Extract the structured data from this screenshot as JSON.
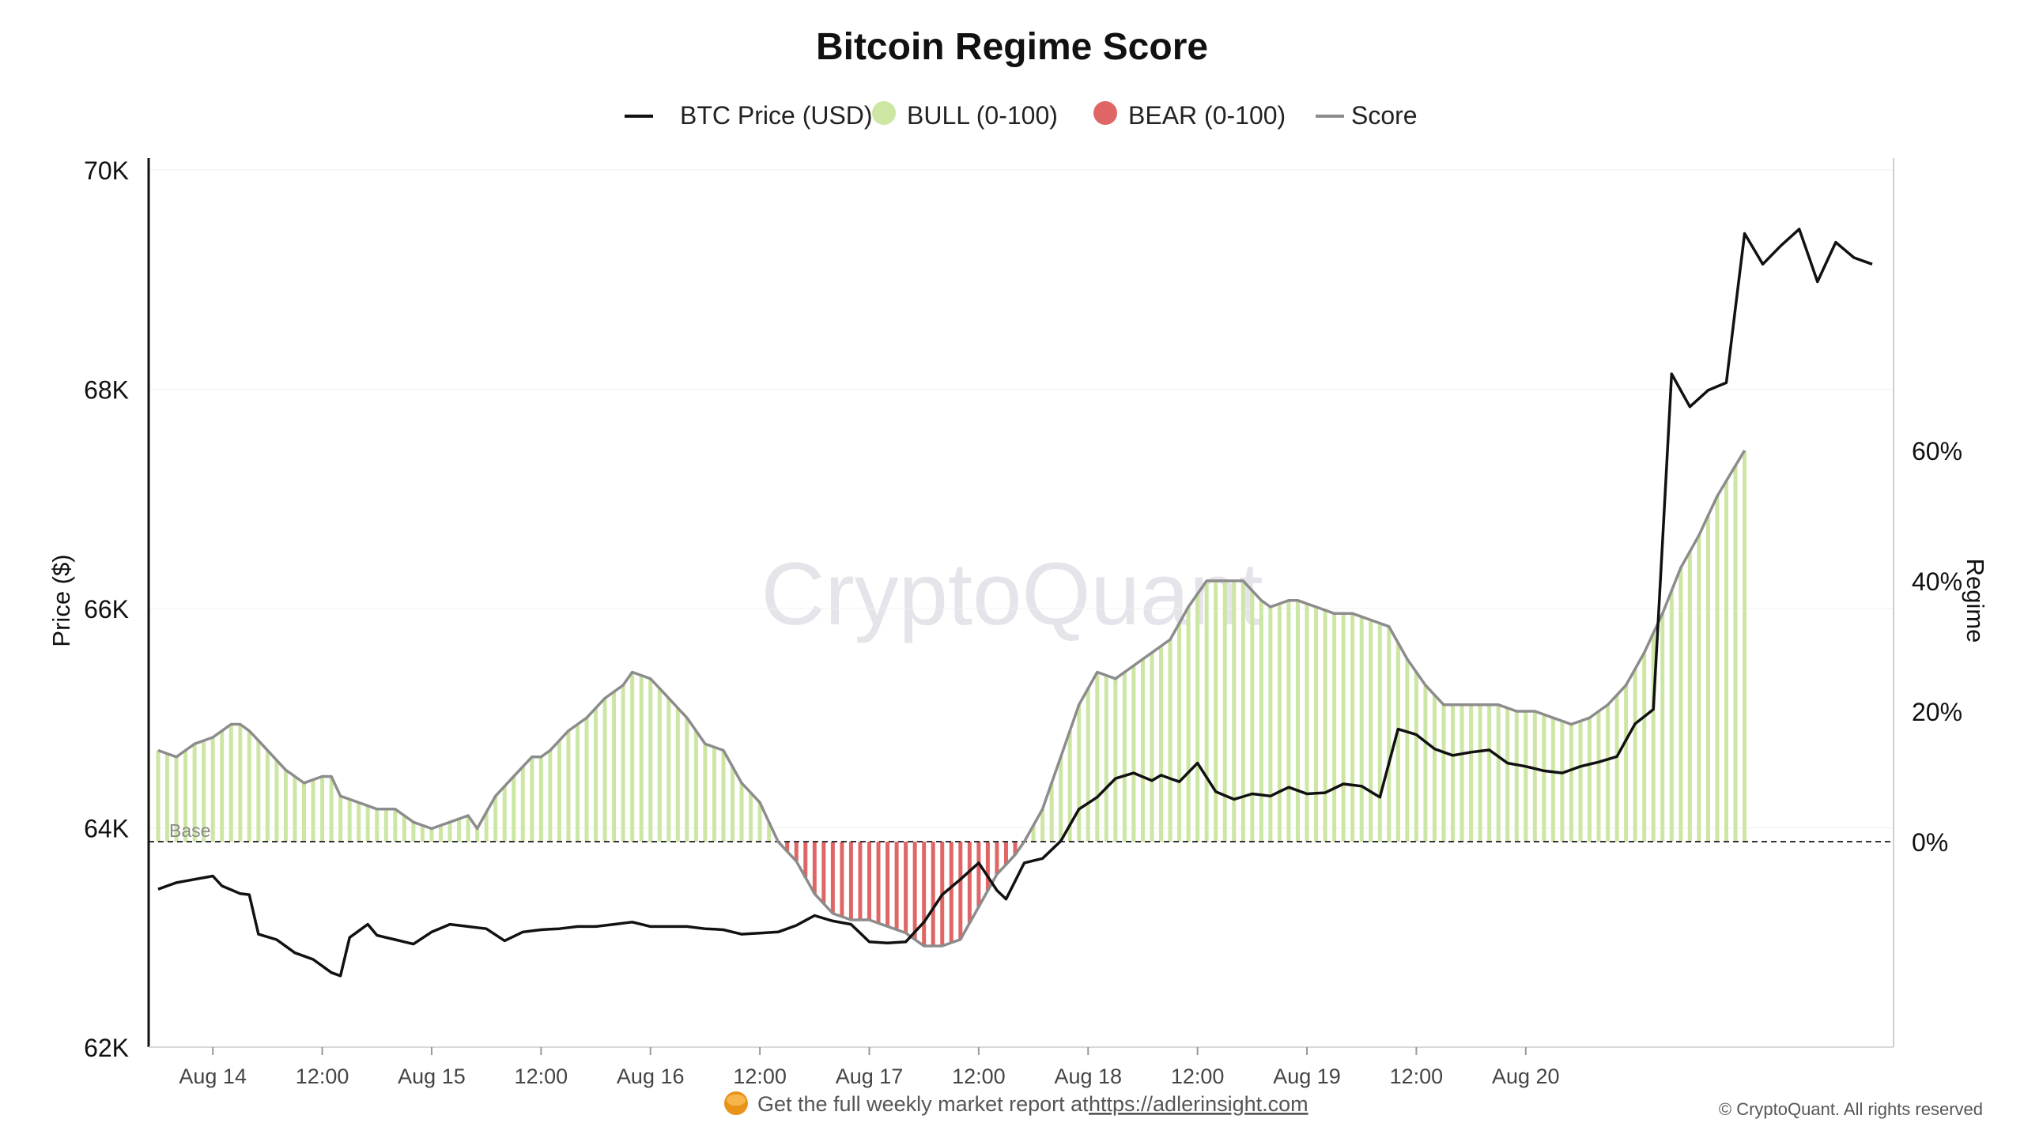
{
  "chart_data": {
    "type": "bar",
    "title": "Bitcoin Regime Score",
    "legend": [
      {
        "label": "BTC Price (USD)",
        "color": "#111111",
        "marker": "line"
      },
      {
        "label": "BULL (0-100)",
        "color": "#cde6a3",
        "marker": "dot"
      },
      {
        "label": "BEAR (0-100)",
        "color": "#e06666",
        "marker": "dot"
      },
      {
        "label": "Score",
        "color": "#8c8c8c",
        "marker": "line"
      }
    ],
    "legend_position": "top-center",
    "ylabel_left": "Price ($)",
    "ylabel_right": "Regime",
    "y_left_ticks": [
      "70K",
      "68K",
      "66K",
      "64K",
      "62K"
    ],
    "y_left_range": [
      62000,
      70000
    ],
    "y_right_ticks": [
      "60%",
      "40%",
      "20%",
      "0%"
    ],
    "y_right_range": [
      -19,
      60
    ],
    "x_ticks": [
      "Aug 14",
      "12:00",
      "Aug 15",
      "12:00",
      "Aug 16",
      "12:00",
      "Aug 17",
      "12:00",
      "Aug 18",
      "12:00",
      "Aug 19",
      "12:00",
      "Aug 20"
    ],
    "baseline_label": "Base",
    "watermark": "CryptoQuant",
    "grid": true,
    "score_anchor_points": [
      [
        0,
        14
      ],
      [
        2,
        13
      ],
      [
        4,
        15
      ],
      [
        6,
        16
      ],
      [
        8,
        18
      ],
      [
        9,
        18
      ],
      [
        10,
        17
      ],
      [
        12,
        14
      ],
      [
        14,
        11
      ],
      [
        16,
        9
      ],
      [
        18,
        10
      ],
      [
        19,
        10
      ],
      [
        20,
        7
      ],
      [
        22,
        6
      ],
      [
        24,
        5
      ],
      [
        26,
        5
      ],
      [
        28,
        3
      ],
      [
        30,
        2
      ],
      [
        32,
        3
      ],
      [
        34,
        4
      ],
      [
        35,
        2
      ],
      [
        37,
        7
      ],
      [
        39,
        10
      ],
      [
        41,
        13
      ],
      [
        42,
        13
      ],
      [
        43,
        14
      ],
      [
        45,
        17
      ],
      [
        47,
        19
      ],
      [
        49,
        22
      ],
      [
        51,
        24
      ],
      [
        52,
        26
      ],
      [
        54,
        25
      ],
      [
        56,
        22
      ],
      [
        58,
        19
      ],
      [
        60,
        15
      ],
      [
        62,
        14
      ],
      [
        64,
        9
      ],
      [
        66,
        6
      ],
      [
        68,
        0
      ],
      [
        70,
        -3
      ],
      [
        72,
        -8
      ],
      [
        74,
        -11
      ],
      [
        76,
        -12
      ],
      [
        78,
        -12
      ],
      [
        80,
        -13
      ],
      [
        82,
        -14
      ],
      [
        84,
        -16
      ],
      [
        86,
        -16
      ],
      [
        88,
        -15
      ],
      [
        90,
        -10
      ],
      [
        92,
        -5
      ],
      [
        94,
        -2
      ],
      [
        95,
        0
      ],
      [
        97,
        5
      ],
      [
        99,
        13
      ],
      [
        101,
        21
      ],
      [
        103,
        26
      ],
      [
        105,
        25
      ],
      [
        107,
        27
      ],
      [
        109,
        29
      ],
      [
        111,
        31
      ],
      [
        113,
        36
      ],
      [
        115,
        40
      ],
      [
        117,
        40
      ],
      [
        119,
        40
      ],
      [
        121,
        37
      ],
      [
        122,
        36
      ],
      [
        124,
        37
      ],
      [
        125,
        37
      ],
      [
        127,
        36
      ],
      [
        129,
        35
      ],
      [
        131,
        35
      ],
      [
        133,
        34
      ],
      [
        135,
        33
      ],
      [
        137,
        28
      ],
      [
        139,
        24
      ],
      [
        141,
        21
      ],
      [
        143,
        21
      ],
      [
        145,
        21
      ],
      [
        147,
        21
      ],
      [
        149,
        20
      ],
      [
        151,
        20
      ],
      [
        153,
        19
      ],
      [
        155,
        18
      ],
      [
        157,
        19
      ],
      [
        159,
        21
      ],
      [
        161,
        24
      ],
      [
        163,
        29
      ],
      [
        165,
        35
      ],
      [
        167,
        42
      ],
      [
        169,
        47
      ],
      [
        171,
        53
      ],
      [
        174,
        60
      ]
    ],
    "btc_price_anchor_points": [
      [
        0,
        63440
      ],
      [
        2,
        63500
      ],
      [
        4,
        63530
      ],
      [
        6,
        63560
      ],
      [
        7,
        63470
      ],
      [
        9,
        63400
      ],
      [
        10,
        63390
      ],
      [
        11,
        63030
      ],
      [
        13,
        62980
      ],
      [
        15,
        62860
      ],
      [
        17,
        62800
      ],
      [
        19,
        62680
      ],
      [
        20,
        62650
      ],
      [
        21,
        63000
      ],
      [
        23,
        63120
      ],
      [
        24,
        63020
      ],
      [
        26,
        62980
      ],
      [
        28,
        62940
      ],
      [
        30,
        63050
      ],
      [
        32,
        63120
      ],
      [
        34,
        63100
      ],
      [
        36,
        63080
      ],
      [
        38,
        62970
      ],
      [
        40,
        63050
      ],
      [
        42,
        63070
      ],
      [
        44,
        63080
      ],
      [
        46,
        63100
      ],
      [
        48,
        63100
      ],
      [
        50,
        63120
      ],
      [
        52,
        63140
      ],
      [
        54,
        63100
      ],
      [
        56,
        63100
      ],
      [
        58,
        63100
      ],
      [
        60,
        63080
      ],
      [
        62,
        63070
      ],
      [
        64,
        63030
      ],
      [
        66,
        63040
      ],
      [
        68,
        63050
      ],
      [
        70,
        63110
      ],
      [
        72,
        63200
      ],
      [
        74,
        63150
      ],
      [
        76,
        63120
      ],
      [
        78,
        62960
      ],
      [
        80,
        62950
      ],
      [
        82,
        62960
      ],
      [
        84,
        63140
      ],
      [
        86,
        63390
      ],
      [
        88,
        63530
      ],
      [
        90,
        63680
      ],
      [
        92,
        63430
      ],
      [
        93,
        63350
      ],
      [
        95,
        63680
      ],
      [
        97,
        63720
      ],
      [
        99,
        63880
      ],
      [
        101,
        64170
      ],
      [
        103,
        64280
      ],
      [
        105,
        64450
      ],
      [
        107,
        64500
      ],
      [
        109,
        64430
      ],
      [
        110,
        64480
      ],
      [
        112,
        64420
      ],
      [
        114,
        64590
      ],
      [
        116,
        64330
      ],
      [
        118,
        64260
      ],
      [
        120,
        64310
      ],
      [
        122,
        64290
      ],
      [
        124,
        64370
      ],
      [
        126,
        64310
      ],
      [
        128,
        64320
      ],
      [
        130,
        64400
      ],
      [
        132,
        64380
      ],
      [
        134,
        64280
      ],
      [
        136,
        64900
      ],
      [
        138,
        64850
      ],
      [
        140,
        64720
      ],
      [
        142,
        64660
      ],
      [
        144,
        64690
      ],
      [
        146,
        64710
      ],
      [
        148,
        64590
      ],
      [
        150,
        64560
      ],
      [
        152,
        64520
      ],
      [
        154,
        64500
      ],
      [
        156,
        64560
      ],
      [
        158,
        64600
      ],
      [
        160,
        64650
      ],
      [
        162,
        64950
      ],
      [
        164,
        65080
      ],
      [
        166,
        68140
      ],
      [
        168,
        67840
      ],
      [
        170,
        67990
      ],
      [
        172,
        68060
      ],
      [
        174,
        69420
      ],
      [
        176,
        69140
      ],
      [
        178,
        69310
      ],
      [
        180,
        69460
      ],
      [
        182,
        68980
      ],
      [
        184,
        69340
      ],
      [
        186,
        69200
      ],
      [
        188,
        69140
      ]
    ]
  },
  "footer": {
    "report_text": "Get the full weekly market report at",
    "report_link": "https://adlerinsight.com",
    "copyright": "© CryptoQuant. All rights reserved"
  }
}
